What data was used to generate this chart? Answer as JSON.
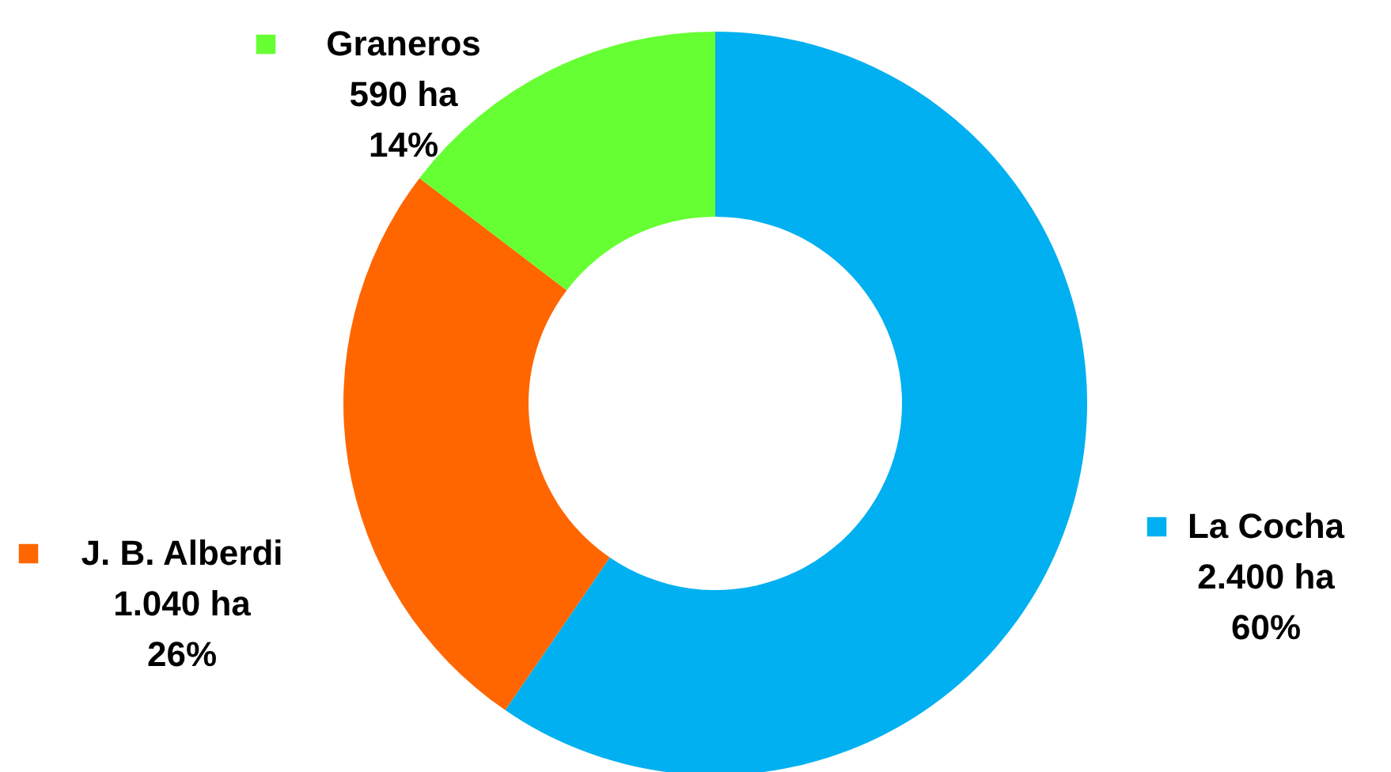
{
  "chart_data": {
    "type": "donut",
    "categories": [
      "La Cocha",
      "J. B. Alberdi",
      "Graneros"
    ],
    "values": [
      2400,
      1040,
      590
    ],
    "value_labels": [
      "2.400 ha\n60%",
      "1.040 ha\n26%",
      "590 ha\n14%"
    ],
    "colors": [
      "#00b0f0",
      "#ff6600",
      "#66ff33"
    ],
    "legend": "left"
  }
}
